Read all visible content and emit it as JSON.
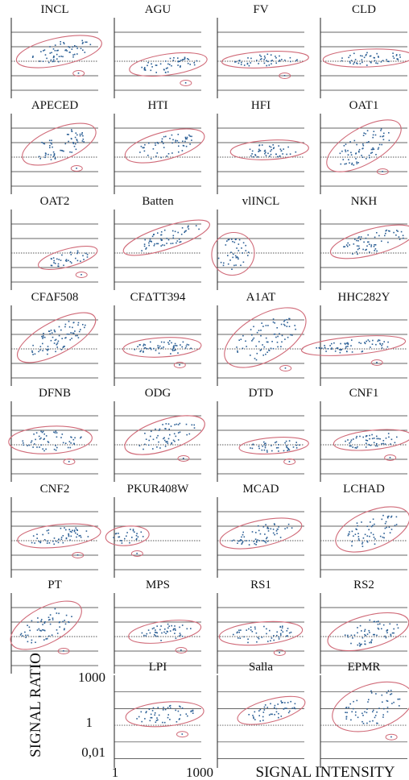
{
  "chart_data": {
    "type": "scatter",
    "xlabel": "SIGNAL INTENSITY",
    "ylabel": "SIGNAL RATIO",
    "x_ticks": [
      "1",
      "1000"
    ],
    "y_ticks": [
      "1000",
      "1",
      "0,01"
    ],
    "x_scale": "log",
    "y_scale": "log",
    "point_color": "#2b5f95",
    "ellipse_color": "#d06a78",
    "grid": true,
    "panels": [
      {
        "title": "INCL"
      },
      {
        "title": "AGU"
      },
      {
        "title": "FV"
      },
      {
        "title": "CLD"
      },
      {
        "title": "APECED"
      },
      {
        "title": "HTI"
      },
      {
        "title": "HFI"
      },
      {
        "title": "OAT1"
      },
      {
        "title": "OAT2"
      },
      {
        "title": "Batten"
      },
      {
        "title": "vlINCL"
      },
      {
        "title": "NKH"
      },
      {
        "title": "CFΔF508"
      },
      {
        "title": "CFΔTT394"
      },
      {
        "title": "A1AT"
      },
      {
        "title": "HHC282Y"
      },
      {
        "title": "DFNB"
      },
      {
        "title": "ODG"
      },
      {
        "title": "DTD"
      },
      {
        "title": "CNF1"
      },
      {
        "title": "CNF2"
      },
      {
        "title": "PKUR408W"
      },
      {
        "title": "MCAD"
      },
      {
        "title": "LCHAD"
      },
      {
        "title": "PT"
      },
      {
        "title": "MPS"
      },
      {
        "title": "RS1"
      },
      {
        "title": "RS2"
      },
      {
        "title": "LPI"
      },
      {
        "title": "Salla"
      },
      {
        "title": "EPMR"
      }
    ]
  }
}
